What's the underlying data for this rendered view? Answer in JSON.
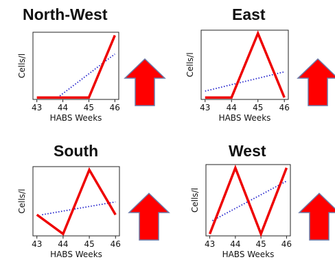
{
  "colors": {
    "data_line": "#ee0000",
    "trend_line": "#2222cc",
    "arrow": "#ff0000",
    "arrow_outline": "#6a7aa8"
  },
  "icons": {
    "trend_indicator": "up-arrow-icon"
  },
  "panels": [
    {
      "title": "North-West",
      "xlabel": "HABS Weeks",
      "ylabel": "Cells/l",
      "trend": "up"
    },
    {
      "title": "East",
      "xlabel": "HABS Weeks",
      "ylabel": "Cells/l",
      "trend": "up"
    },
    {
      "title": "South",
      "xlabel": "HABS Weeks",
      "ylabel": "Cells/l",
      "trend": "up"
    },
    {
      "title": "West",
      "xlabel": "HABS Weeks",
      "ylabel": "Cells/l",
      "trend": "up"
    }
  ],
  "chart_data": [
    {
      "type": "line",
      "title": "North-West",
      "xlabel": "HABS Weeks",
      "ylabel": "Cells/l",
      "x": [
        43,
        44,
        45,
        46
      ],
      "xticks": [
        43,
        44,
        45,
        46
      ],
      "xlim": [
        42.85,
        46.15
      ],
      "ylim": [
        -0.03,
        1.05
      ],
      "series": [
        {
          "values": [
            0,
            0,
            0,
            1
          ]
        }
      ],
      "trendline": {
        "x": [
          43.8,
          46
        ],
        "values": [
          0,
          0.7
        ]
      }
    },
    {
      "type": "line",
      "title": "East",
      "xlabel": "HABS Weeks",
      "ylabel": "Cells/l",
      "x": [
        43,
        44,
        45,
        46
      ],
      "xticks": [
        43,
        44,
        45,
        46
      ],
      "xlim": [
        42.85,
        46.15
      ],
      "ylim": [
        -0.03,
        1.05
      ],
      "series": [
        {
          "values": [
            0,
            0,
            1,
            0
          ]
        }
      ],
      "trendline": {
        "x": [
          43,
          46
        ],
        "values": [
          0.1,
          0.4
        ]
      }
    },
    {
      "type": "line",
      "title": "South",
      "xlabel": "HABS Weeks",
      "ylabel": "Cells/l",
      "x": [
        43,
        44,
        45,
        46
      ],
      "xticks": [
        43,
        44,
        45,
        46
      ],
      "xlim": [
        42.85,
        46.15
      ],
      "ylim": [
        -0.03,
        1.05
      ],
      "series": [
        {
          "values": [
            0.3,
            0,
            1,
            0.3
          ]
        }
      ],
      "trendline": {
        "x": [
          43.2,
          46
        ],
        "values": [
          0.3,
          0.5
        ]
      }
    },
    {
      "type": "line",
      "title": "West",
      "xlabel": "HABS Weeks",
      "ylabel": "Cells/l",
      "x": [
        43,
        44,
        45,
        46
      ],
      "xticks": [
        43,
        44,
        45,
        46
      ],
      "xlim": [
        42.85,
        46.15
      ],
      "ylim": [
        -0.03,
        1.05
      ],
      "series": [
        {
          "values": [
            0,
            1,
            0,
            1
          ]
        }
      ],
      "trendline": {
        "x": [
          43.1,
          46
        ],
        "values": [
          0.2,
          0.8
        ]
      }
    }
  ]
}
